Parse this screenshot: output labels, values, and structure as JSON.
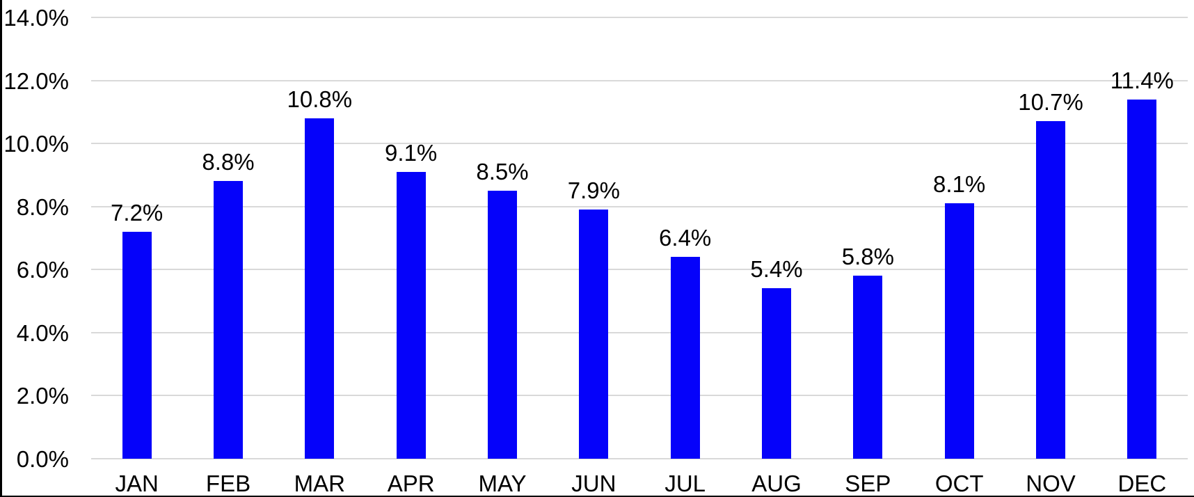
{
  "chart_data": {
    "type": "bar",
    "title": "",
    "xlabel": "",
    "ylabel": "",
    "categories": [
      "JAN",
      "FEB",
      "MAR",
      "APR",
      "MAY",
      "JUN",
      "JUL",
      "AUG",
      "SEP",
      "OCT",
      "NOV",
      "DEC"
    ],
    "values": [
      7.2,
      8.8,
      10.8,
      9.1,
      8.5,
      7.9,
      6.4,
      5.4,
      5.8,
      8.1,
      10.7,
      11.4
    ],
    "data_labels": [
      "7.2%",
      "8.8%",
      "10.8%",
      "9.1%",
      "8.5%",
      "7.9%",
      "6.4%",
      "5.4%",
      "5.8%",
      "8.1%",
      "10.7%",
      "11.4%"
    ],
    "y_ticks": [
      "0.0%",
      "2.0%",
      "4.0%",
      "6.0%",
      "8.0%",
      "10.0%",
      "12.0%",
      "14.0%"
    ],
    "y_tick_values": [
      0,
      2,
      4,
      6,
      8,
      10,
      12,
      14
    ],
    "ylim": [
      0,
      14
    ],
    "grid": true,
    "legend_position": "none",
    "colors": {
      "bar": "#0502FA",
      "gridline": "#D9D9D9",
      "text": "#000000",
      "background": "#FFFFFF",
      "frame_edge": "#000000"
    }
  }
}
